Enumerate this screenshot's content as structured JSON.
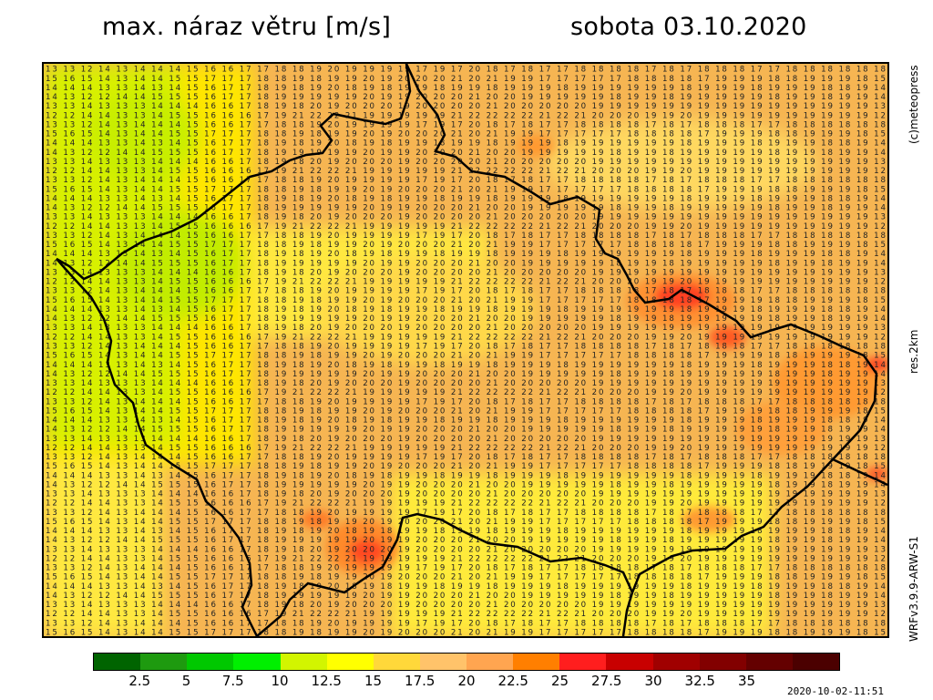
{
  "header": {
    "title": "max. náraz větru [m/s]",
    "date": "sobota 03.10.2020"
  },
  "side_labels": {
    "copyright": "(c)meteopress",
    "resolution": "res.2km",
    "model": "WRFv3.9.9-ARW-S1"
  },
  "legend": {
    "colors": [
      "#006400",
      "#1e9a0f",
      "#00c800",
      "#00f000",
      "#d2f500",
      "#ffff00",
      "#ffd83a",
      "#ffc36a",
      "#ffa550",
      "#ff7f00",
      "#ff1e1e",
      "#c80000",
      "#a00000",
      "#820000",
      "#640000",
      "#4b0000"
    ],
    "ticks": [
      "2.5",
      "5",
      "7.5",
      "10",
      "12.5",
      "15",
      "17.5",
      "20",
      "22.5",
      "25",
      "27.5",
      "30",
      "32.5",
      "35"
    ]
  },
  "timestamp": "2020-10-02-11:51",
  "map": {
    "description_key": "wind-gust-grid",
    "grid_values_sample_rows": [
      "13 13 12 14 13 14 14 14 15 16 16 17 17 18 18 19 20 19 19 19 19 17 19 17 20 18 17 18 17 17 18 18 18 18 17 18 17 18 18 18 17 17 18 18 18 18 18 18",
      "15 16 15 14 13 14 14 15 15 17 17 17 18 18 19 18 19 19 20 19 20 20 20 21 20 21 19 19 17 17 17 17 17 18 18 18 18 17 19 19 19 18 18 19 19 19 18",
      "14 14 14 13 13 14 13 14 15 16 17 17 18 19 18 19 20 18 19 18 19 19 18 19 19 18 19 19 19 18 19 19 19 19 19 19 18 19 19 19 18 19 19 19 18 18 19",
      "14 13 12 12 14 14 15 15 15 16 17 17 18 19 19 19 19 19 20 19 19 20 20 20 21 20 20 19 19 19 19 19 18 19 19 18 19 19 19 19 19 18 19 19 18 19 19",
      "13 13 14 13 13 13 14 14 14 16 16 17 18 19 18 20 19 20 20 20 19 20 20 20 20 21 20 20 20 20 20 19 19 19 19 19 19 19 19 19 19 19 19 19 19 19 19",
      "12 12 14 14 13 13 14 15 15 16 16 16 17 19 21 22 22 21 19 19 19 19 19 21 22 22 22 22 21 22 21 20 20 20 19 19 20 19 19 19 19 19 19 19 19 19 19"
    ],
    "colors": {
      "green": "#7fd000",
      "yellow_green": "#d2f000",
      "yellow": "#ffff00",
      "light_orange": "#ffd060",
      "orange": "#f6b552",
      "dark_orange": "#ff9a2a",
      "red": "#ff2020",
      "border": "#000000"
    }
  }
}
